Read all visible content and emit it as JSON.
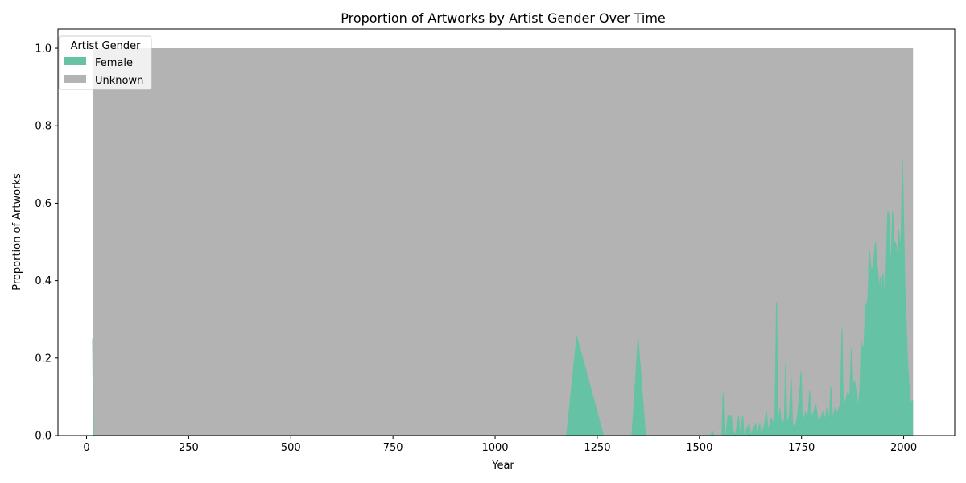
{
  "chart_data": {
    "type": "area",
    "stacked": true,
    "title": "Proportion of Artworks by Artist Gender Over Time",
    "xlabel": "Year",
    "ylabel": "Proportion of Artworks",
    "xlim": [
      -70,
      2125
    ],
    "ylim": [
      0,
      1.05
    ],
    "xticks": [
      0,
      250,
      500,
      750,
      1000,
      1250,
      1500,
      1750,
      2000
    ],
    "yticks": [
      0.0,
      0.2,
      0.4,
      0.6,
      0.8,
      1.0
    ],
    "xtick_labels": [
      "0",
      "250",
      "500",
      "750",
      "1000",
      "1250",
      "1500",
      "1750",
      "2000"
    ],
    "ytick_labels": [
      "0.0",
      "0.2",
      "0.4",
      "0.6",
      "0.8",
      "1.0"
    ],
    "grid": false,
    "legend": {
      "title": "Artist Gender",
      "placement": "top-left"
    },
    "series": [
      {
        "name": "Female",
        "color": "#66c2a5"
      },
      {
        "name": "Unknown",
        "color": "#b3b3b3"
      }
    ],
    "total": 1.0,
    "x_start": 15,
    "x_end": 2023,
    "female_points": [
      [
        15,
        0.25
      ],
      [
        17,
        0.0
      ],
      [
        1175,
        0.0
      ],
      [
        1200,
        0.255
      ],
      [
        1265,
        0.0
      ],
      [
        1335,
        0.0
      ],
      [
        1350,
        0.25
      ],
      [
        1368,
        0.0
      ],
      [
        1528,
        0.0
      ],
      [
        1532,
        0.01
      ],
      [
        1536,
        0.0
      ],
      [
        1555,
        0.0
      ],
      [
        1558,
        0.11
      ],
      [
        1561,
        0.0
      ],
      [
        1565,
        0.0
      ],
      [
        1570,
        0.05
      ],
      [
        1578,
        0.05
      ],
      [
        1583,
        0.01
      ],
      [
        1588,
        0.0
      ],
      [
        1596,
        0.05
      ],
      [
        1599,
        0.0
      ],
      [
        1606,
        0.05
      ],
      [
        1609,
        0.0
      ],
      [
        1622,
        0.03
      ],
      [
        1625,
        0.0
      ],
      [
        1638,
        0.03
      ],
      [
        1641,
        0.0
      ],
      [
        1648,
        0.03
      ],
      [
        1651,
        0.0
      ],
      [
        1660,
        0.03
      ],
      [
        1664,
        0.065
      ],
      [
        1668,
        0.01
      ],
      [
        1676,
        0.045
      ],
      [
        1682,
        0.03
      ],
      [
        1685,
        0.045
      ],
      [
        1689,
        0.345
      ],
      [
        1692,
        0.02
      ],
      [
        1697,
        0.07
      ],
      [
        1701,
        0.03
      ],
      [
        1708,
        0.04
      ],
      [
        1711,
        0.185
      ],
      [
        1714,
        0.03
      ],
      [
        1720,
        0.05
      ],
      [
        1725,
        0.15
      ],
      [
        1728,
        0.03
      ],
      [
        1735,
        0.02
      ],
      [
        1740,
        0.05
      ],
      [
        1745,
        0.1
      ],
      [
        1749,
        0.165
      ],
      [
        1752,
        0.03
      ],
      [
        1760,
        0.06
      ],
      [
        1765,
        0.04
      ],
      [
        1770,
        0.115
      ],
      [
        1773,
        0.05
      ],
      [
        1780,
        0.06
      ],
      [
        1785,
        0.08
      ],
      [
        1790,
        0.04
      ],
      [
        1797,
        0.045
      ],
      [
        1802,
        0.06
      ],
      [
        1807,
        0.04
      ],
      [
        1812,
        0.07
      ],
      [
        1818,
        0.04
      ],
      [
        1822,
        0.125
      ],
      [
        1826,
        0.04
      ],
      [
        1832,
        0.07
      ],
      [
        1838,
        0.06
      ],
      [
        1845,
        0.08
      ],
      [
        1849,
        0.275
      ],
      [
        1852,
        0.08
      ],
      [
        1858,
        0.09
      ],
      [
        1863,
        0.11
      ],
      [
        1868,
        0.1
      ],
      [
        1872,
        0.225
      ],
      [
        1876,
        0.13
      ],
      [
        1880,
        0.14
      ],
      [
        1884,
        0.11
      ],
      [
        1888,
        0.07
      ],
      [
        1893,
        0.12
      ],
      [
        1896,
        0.245
      ],
      [
        1900,
        0.22
      ],
      [
        1903,
        0.235
      ],
      [
        1907,
        0.34
      ],
      [
        1910,
        0.33
      ],
      [
        1913,
        0.365
      ],
      [
        1916,
        0.48
      ],
      [
        1919,
        0.44
      ],
      [
        1922,
        0.42
      ],
      [
        1925,
        0.44
      ],
      [
        1928,
        0.46
      ],
      [
        1931,
        0.5
      ],
      [
        1934,
        0.45
      ],
      [
        1937,
        0.42
      ],
      [
        1940,
        0.37
      ],
      [
        1943,
        0.41
      ],
      [
        1946,
        0.36
      ],
      [
        1949,
        0.42
      ],
      [
        1952,
        0.38
      ],
      [
        1955,
        0.36
      ],
      [
        1958,
        0.46
      ],
      [
        1961,
        0.58
      ],
      [
        1964,
        0.57
      ],
      [
        1967,
        0.45
      ],
      [
        1970,
        0.47
      ],
      [
        1973,
        0.58
      ],
      [
        1976,
        0.5
      ],
      [
        1979,
        0.5
      ],
      [
        1982,
        0.49
      ],
      [
        1985,
        0.45
      ],
      [
        1988,
        0.53
      ],
      [
        1991,
        0.48
      ],
      [
        1994,
        0.52
      ],
      [
        1997,
        0.71
      ],
      [
        2000,
        0.55
      ],
      [
        2003,
        0.38
      ],
      [
        2006,
        0.3
      ],
      [
        2009,
        0.2
      ],
      [
        2012,
        0.15
      ],
      [
        2015,
        0.1
      ],
      [
        2018,
        0.08
      ],
      [
        2021,
        0.09
      ],
      [
        2023,
        0.09
      ]
    ]
  }
}
